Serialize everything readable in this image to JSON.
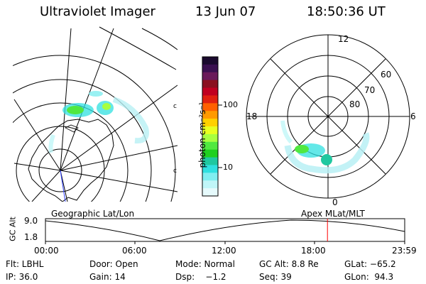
{
  "header": {
    "instrument": "Ultraviolet Imager",
    "date": "13 Jun 07",
    "time": "18:50:36 UT"
  },
  "colorbar": {
    "unit_label": "photon cm⁻²s⁻¹",
    "ticks": [
      "100",
      "10"
    ],
    "colors": [
      "#1a0a2e",
      "#3a1050",
      "#6a1a5a",
      "#8a1020",
      "#c00020",
      "#e02010",
      "#ff6000",
      "#ff9a00",
      "#ffd000",
      "#e8ff20",
      "#a8ff40",
      "#50e840",
      "#20d020",
      "#20c8a0",
      "#30e0e0",
      "#80eef0",
      "#c0f6f8",
      "#e6fafc"
    ]
  },
  "left_map": {
    "projection_label": "Geographic Lat/Lon"
  },
  "right_map": {
    "projection_label": "Apex MLat/MLT",
    "mlt_labels": {
      "top": "12",
      "left": "18",
      "right": "6",
      "bottom": "0"
    },
    "mlat_labels": [
      "80",
      "70",
      "60"
    ]
  },
  "timeline": {
    "y_axis_title": "GC Alt",
    "y_ticks": [
      "9.0",
      "1.8"
    ],
    "x_ticks": [
      "00:00",
      "06:00",
      "12:00",
      "18:00",
      "23:59"
    ],
    "current_time_marker_hour": 18.84,
    "marker_color": "#ff0000"
  },
  "footer": {
    "filter": "Flt: LBHL",
    "door": "Door: Open",
    "mode": "Mode: Normal",
    "gc_alt": "GC Alt: 8.8 Re",
    "glat": "GLat: −65.2",
    "ip": "IP: 36.0",
    "gain": "Gain: 14",
    "dsp": "Dsp:    −1.2",
    "seq": "Seq: 39",
    "glon": "GLon:  94.3"
  }
}
